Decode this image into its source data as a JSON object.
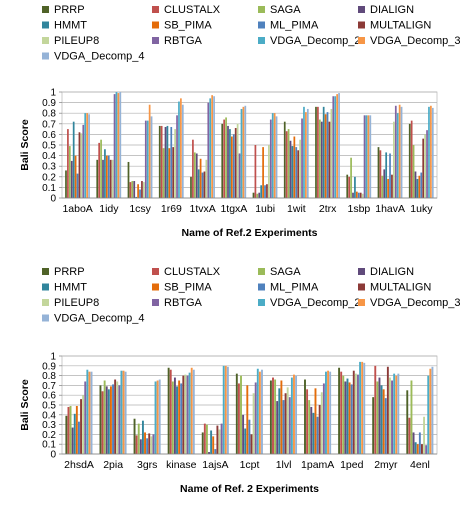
{
  "chart_data": [
    {
      "type": "bar",
      "title": "",
      "xlabel": "Name of Ref.2 Experiments",
      "ylabel": "Bali Score",
      "ylim": [
        0,
        1
      ],
      "yticks": [
        "0",
        "0.1",
        "0.2",
        "0.3",
        "0.4",
        "0.5",
        "0.6",
        "0.7",
        "0.8",
        "0.9",
        "1"
      ],
      "grid": "horizontal",
      "legend_placement": "top",
      "categories": [
        "1aboA",
        "1idy",
        "1csy",
        "1r69",
        "1tvxA",
        "1tgxA",
        "1ubi",
        "1wit",
        "2trx",
        "1sbp",
        "1havA",
        "1uky"
      ],
      "series": [
        {
          "name": "PRRP",
          "color": "#4f6228",
          "values": [
            0.26,
            0.36,
            0.34,
            0.68,
            0.2,
            0.7,
            0.05,
            0.72,
            0.86,
            0.22,
            0.48,
            0.7
          ]
        },
        {
          "name": "CLUSTALX",
          "color": "#c0504d",
          "values": [
            0.65,
            0.52,
            0.15,
            0.68,
            0.55,
            0.74,
            0.5,
            0.63,
            0.86,
            0.2,
            0.45,
            0.73
          ]
        },
        {
          "name": "SAGA",
          "color": "#9bbb59",
          "values": [
            0.49,
            0.55,
            0.16,
            0.47,
            0.43,
            0.76,
            0.04,
            0.65,
            0.74,
            0.38,
            0.21,
            0.5
          ]
        },
        {
          "name": "DIALIGN",
          "color": "#604a7b",
          "values": [
            0.35,
            0.36,
            0.16,
            0.67,
            0.42,
            0.68,
            0.05,
            0.54,
            0.72,
            0.05,
            0.27,
            0.25
          ]
        },
        {
          "name": "HMMT",
          "color": "#31859c",
          "values": [
            0.72,
            0.46,
            0.01,
            0.68,
            0.27,
            0.65,
            0.12,
            0.49,
            0.86,
            0.2,
            0.43,
            0.18
          ]
        },
        {
          "name": "SB_PIMA",
          "color": "#e46c0a",
          "values": [
            0.4,
            0.4,
            0.13,
            0.47,
            0.37,
            0.58,
            0.48,
            0.58,
            0.79,
            0.06,
            0.18,
            0.21
          ]
        },
        {
          "name": "ML_PIMA",
          "color": "#4f81bd",
          "values": [
            0.23,
            0.4,
            0.08,
            0.67,
            0.24,
            0.6,
            0.12,
            0.48,
            0.81,
            0.05,
            0.42,
            0.24
          ]
        },
        {
          "name": "MULTALIGN",
          "color": "#8c3a37",
          "values": [
            0.62,
            0.36,
            0.16,
            0.48,
            0.25,
            0.66,
            0.13,
            0.45,
            0.72,
            0.05,
            0.22,
            0.56
          ]
        },
        {
          "name": "PILEUP8",
          "color": "#c3d69b",
          "values": [
            0.61,
            0.36,
            0.15,
            0.65,
            0.36,
            0.7,
            0.5,
            0.55,
            0.84,
            0.04,
            0.72,
            0.6
          ]
        },
        {
          "name": "RBTGA",
          "color": "#8064a2",
          "values": [
            0.69,
            0.98,
            0.73,
            0.78,
            0.9,
            0.42,
            0.74,
            0.75,
            0.96,
            0.78,
            0.87,
            0.64
          ]
        },
        {
          "name": "VDGA_Decomp_2",
          "color": "#4bacc6",
          "values": [
            0.8,
            1.0,
            0.73,
            0.91,
            0.94,
            0.84,
            0.8,
            0.86,
            0.96,
            0.78,
            0.8,
            0.86
          ]
        },
        {
          "name": "VDGA_Decomp_3",
          "color": "#f79646",
          "values": [
            0.8,
            0.99,
            0.88,
            0.94,
            0.97,
            0.86,
            0.8,
            0.81,
            0.98,
            0.78,
            0.88,
            0.87
          ]
        },
        {
          "name": "VDGA_Decomp_4",
          "color": "#95b3d7",
          "values": [
            0.79,
            1.0,
            0.77,
            0.88,
            0.96,
            0.87,
            0.77,
            0.84,
            0.99,
            0.78,
            0.86,
            0.85
          ]
        }
      ]
    },
    {
      "type": "bar",
      "title": "",
      "xlabel": "Name of Ref. 2 Experiments",
      "ylabel": "Bali Score",
      "ylim": [
        0,
        1
      ],
      "yticks": [
        "0",
        "0.1",
        "0.2",
        "0.3",
        "0.4",
        "0.5",
        "0.6",
        "0.7",
        "0.8",
        "0.9",
        "1"
      ],
      "grid": "horizontal",
      "legend_placement": "top",
      "categories": [
        "2hsdA",
        "2pia",
        "3grs",
        "kinase",
        "1ajsA",
        "1cpt",
        "1lvl",
        "1pamA",
        "1ped",
        "2myr",
        "4enl"
      ],
      "series": [
        {
          "name": "PRRP",
          "color": "#4f6228",
          "values": [
            0.39,
            0.7,
            0.36,
            0.88,
            0.22,
            0.82,
            0.75,
            0.76,
            0.88,
            0.58,
            0.65
          ]
        },
        {
          "name": "CLUSTALX",
          "color": "#c0504d",
          "values": [
            0.48,
            0.64,
            0.19,
            0.86,
            0.31,
            0.72,
            0.78,
            0.66,
            0.84,
            0.9,
            0.37
          ]
        },
        {
          "name": "SAGA",
          "color": "#9bbb59",
          "values": [
            0.49,
            0.75,
            0.31,
            0.74,
            0.3,
            0.8,
            0.76,
            0.55,
            0.8,
            0.74,
            0.75
          ]
        },
        {
          "name": "DIALIGN",
          "color": "#604a7b",
          "values": [
            0.27,
            0.69,
            0.15,
            0.78,
            0.02,
            0.4,
            0.54,
            0.48,
            0.74,
            0.78,
            0.22
          ]
        },
        {
          "name": "HMMT",
          "color": "#31859c",
          "values": [
            0.41,
            0.66,
            0.34,
            0.69,
            0.24,
            0.26,
            0.67,
            0.42,
            0.77,
            0.7,
            0.12
          ]
        },
        {
          "name": "SB_PIMA",
          "color": "#e46c0a",
          "values": [
            0.49,
            0.69,
            0.22,
            0.75,
            0.18,
            0.7,
            0.75,
            0.67,
            0.73,
            0.66,
            0.1
          ]
        },
        {
          "name": "ML_PIMA",
          "color": "#4f81bd",
          "values": [
            0.33,
            0.71,
            0.16,
            0.72,
            0.05,
            0.35,
            0.55,
            0.38,
            0.71,
            0.57,
            0.22
          ]
        },
        {
          "name": "MULTALIGN",
          "color": "#8c3a37",
          "values": [
            0.56,
            0.76,
            0.21,
            0.8,
            0.29,
            0.2,
            0.62,
            0.5,
            0.85,
            0.89,
            0.1
          ]
        },
        {
          "name": "PILEUP8",
          "color": "#c3d69b",
          "values": [
            0.6,
            0.74,
            0.18,
            0.81,
            0.25,
            0.62,
            0.68,
            0.63,
            0.82,
            0.78,
            0.38
          ]
        },
        {
          "name": "RBTGA",
          "color": "#8064a2",
          "values": [
            0.74,
            0.7,
            0.2,
            0.8,
            0.31,
            0.73,
            0.58,
            0.72,
            0.81,
            0.75,
            0.09
          ]
        },
        {
          "name": "VDGA_Decomp_2",
          "color": "#4bacc6",
          "values": [
            0.86,
            0.85,
            0.74,
            0.83,
            0.9,
            0.87,
            0.78,
            0.84,
            0.94,
            0.82,
            0.8
          ]
        },
        {
          "name": "VDGA_Decomp_3",
          "color": "#f79646",
          "values": [
            0.84,
            0.85,
            0.75,
            0.88,
            0.9,
            0.84,
            0.81,
            0.85,
            0.94,
            0.8,
            0.87
          ]
        },
        {
          "name": "VDGA_Decomp_4",
          "color": "#95b3d7",
          "values": [
            0.84,
            0.84,
            0.76,
            0.86,
            0.89,
            0.86,
            0.8,
            0.84,
            0.93,
            0.82,
            0.89
          ]
        }
      ]
    }
  ]
}
